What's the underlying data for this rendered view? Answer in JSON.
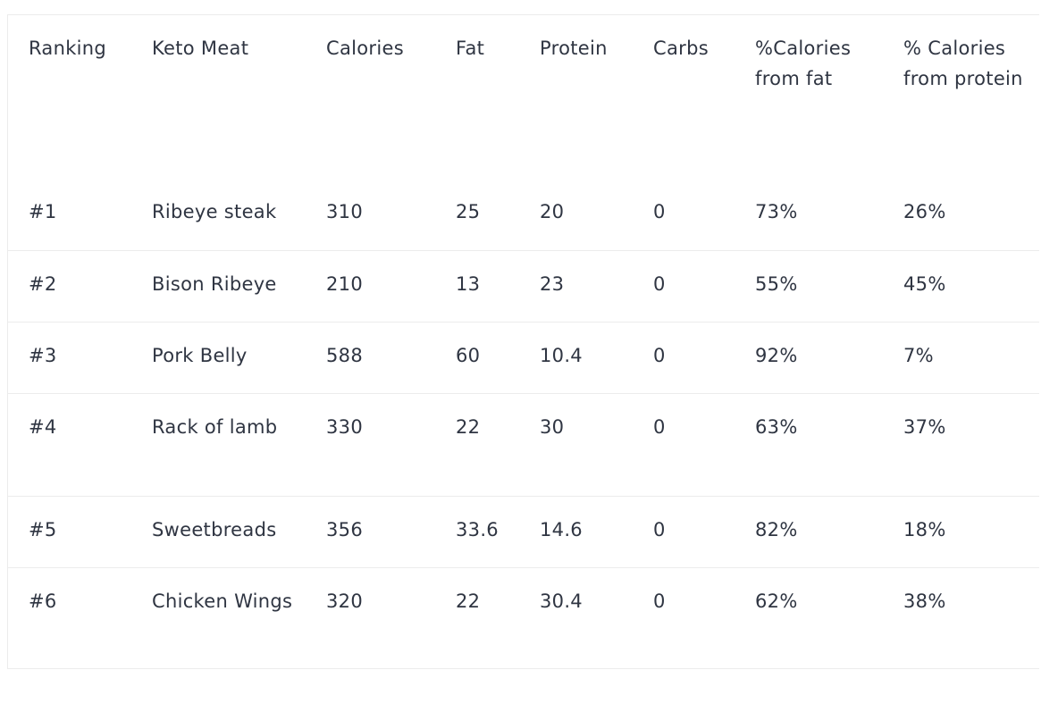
{
  "table": {
    "headers": [
      "Ranking",
      "Keto Meat",
      "Calories",
      "Fat",
      "Protein",
      "Carbs",
      "%Calories from fat",
      "% Calories from protein"
    ],
    "rows": [
      [
        "#1",
        "Ribeye steak",
        "310",
        "25",
        "20",
        "0",
        "73%",
        "26%"
      ],
      [
        "#2",
        "Bison Ribeye",
        "210",
        "13",
        "23",
        "0",
        "55%",
        "45%"
      ],
      [
        "#3",
        "Pork Belly",
        "588",
        "60",
        "10.4",
        "0",
        "92%",
        "7%"
      ],
      [
        "#4",
        "Rack of lamb",
        "330",
        "22",
        "30",
        "0",
        "63%",
        "37%"
      ],
      [
        "#5",
        "Sweetbreads",
        "356",
        "33.6",
        "14.6",
        "0",
        "82%",
        "18%"
      ],
      [
        "#6",
        "Chicken Wings",
        "320",
        "22",
        "30.4",
        "0",
        "62%",
        "38%"
      ]
    ]
  }
}
